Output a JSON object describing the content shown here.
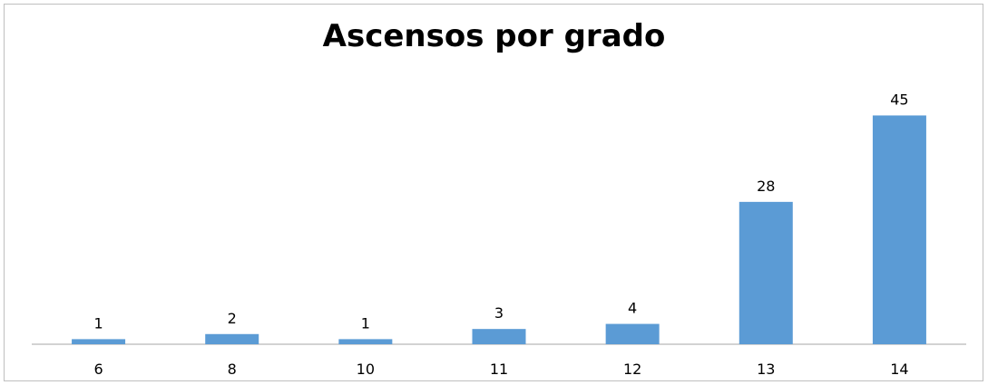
{
  "chart_data": {
    "type": "bar",
    "title": "Ascensos por grado",
    "xlabel": "",
    "ylabel": "",
    "categories": [
      "6",
      "8",
      "10",
      "11",
      "12",
      "13",
      "14"
    ],
    "values": [
      1,
      2,
      1,
      3,
      4,
      28,
      45
    ],
    "ylim": [
      0,
      49
    ],
    "grid": false,
    "legend": "none",
    "bar_color": "#5b9bd5",
    "data_labels": true
  }
}
